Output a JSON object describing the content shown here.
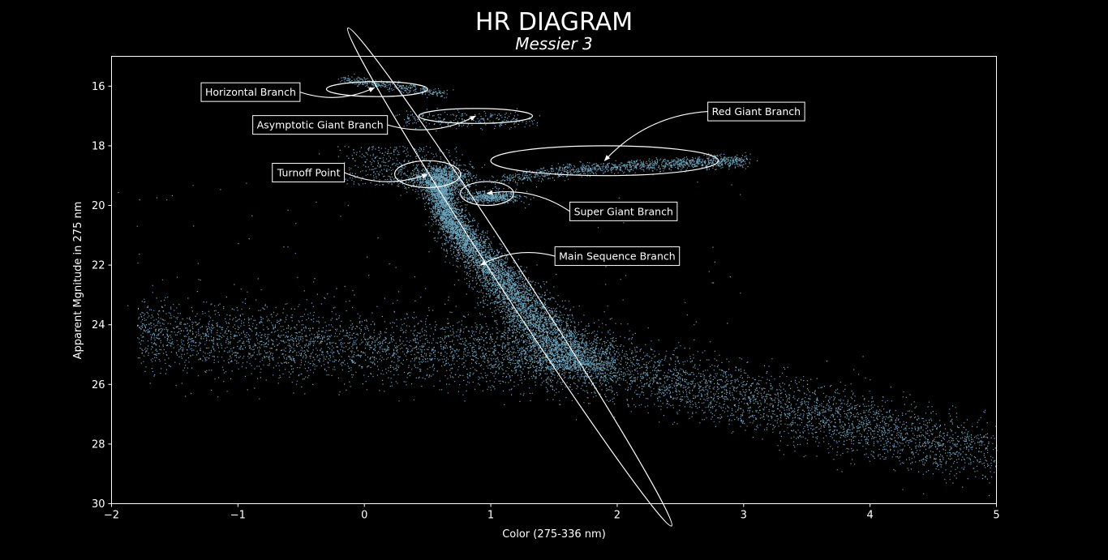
{
  "chart_data": {
    "type": "scatter",
    "title": "HR DIAGRAM",
    "subtitle": "Messier 3",
    "xlabel": "Color (275-336 nm)",
    "ylabel": "Apparent Mgnitude in 275 nm",
    "xlim": [
      -2,
      5
    ],
    "ylim": [
      30,
      15
    ],
    "y_inverted": true,
    "x_ticks": [
      -2,
      -1,
      0,
      1,
      2,
      3,
      4,
      5
    ],
    "x_tick_labels": [
      "−2",
      "−1",
      "0",
      "1",
      "2",
      "3",
      "4",
      "5"
    ],
    "y_ticks": [
      16,
      18,
      20,
      22,
      24,
      26,
      28,
      30
    ],
    "y_tick_labels": [
      "16",
      "18",
      "20",
      "22",
      "24",
      "26",
      "28",
      "30"
    ],
    "grid": false,
    "colors": {
      "background": "#000000",
      "points": "#87ceeb",
      "annotation": "#ffffff"
    },
    "series": [
      {
        "color": "#87ceeb",
        "regions": [
          {
            "component": "horizontal_branch",
            "x_range": [
              -0.2,
              0.7
            ],
            "y_range": [
              15.6,
              16.5
            ],
            "approx_points": 350
          },
          {
            "component": "asymptotic_giant_branch",
            "x_range": [
              0.2,
              1.4
            ],
            "y_range": [
              16.4,
              17.6
            ],
            "approx_points": 250
          },
          {
            "component": "red_giant_branch",
            "x_range": [
              1.0,
              3.1
            ],
            "y_range": [
              17.8,
              19.6
            ],
            "approx_points": 1200
          },
          {
            "component": "turnoff_point",
            "center": [
              0.6,
              19.1
            ],
            "approx_points": 1200
          },
          {
            "component": "super_giant_branch",
            "center": [
              1.0,
              19.7
            ],
            "approx_points": 500
          },
          {
            "component": "main_sequence",
            "x_range": [
              0.5,
              1.9
            ],
            "y_range": [
              19.2,
              25.6
            ],
            "approx_points": 6000
          },
          {
            "component": "faint_tail",
            "x_range": [
              1.5,
              5.0
            ],
            "y_range": [
              25.0,
              28.8
            ],
            "approx_points": 3500
          },
          {
            "component": "scattered_field",
            "x_range": [
              -2.0,
              2.0
            ],
            "y_range": [
              23.5,
              26.5
            ],
            "approx_points": 3500
          }
        ]
      }
    ],
    "annotations": [
      {
        "text": "Horizontal Branch",
        "label_at": [
          -0.9,
          16.2
        ],
        "arrow_to": [
          0.08,
          16.05
        ],
        "ellipse": {
          "center": [
            0.1,
            16.1
          ],
          "rx": 0.4,
          "ry": 0.25
        }
      },
      {
        "text": "Asymptotic Giant Branch",
        "label_at": [
          -0.35,
          17.3
        ],
        "arrow_to": [
          0.88,
          17.0
        ],
        "ellipse": {
          "center": [
            0.88,
            17.0
          ],
          "rx": 0.45,
          "ry": 0.25
        }
      },
      {
        "text": "Red Giant Branch",
        "label_at": [
          3.1,
          16.85
        ],
        "arrow_to": [
          1.9,
          18.5
        ],
        "ellipse": {
          "center": [
            1.9,
            18.5
          ],
          "rx": 0.9,
          "ry": 0.5
        }
      },
      {
        "text": "Turnoff Point",
        "label_at": [
          -0.44,
          18.9
        ],
        "arrow_to": [
          0.5,
          18.95
        ],
        "ellipse": {
          "center": [
            0.5,
            18.95
          ],
          "rx": 0.26,
          "ry": 0.45
        }
      },
      {
        "text": "Super Giant Branch",
        "label_at": [
          2.05,
          20.2
        ],
        "arrow_to": [
          0.97,
          19.6
        ],
        "ellipse": {
          "center": [
            0.97,
            19.6
          ],
          "rx": 0.21,
          "ry": 0.4
        }
      },
      {
        "text": "Main Sequence Branch",
        "label_at": [
          2.0,
          21.7
        ],
        "arrow_to": [
          0.92,
          22.0
        ],
        "ellipse": {
          "center": [
            1.15,
            22.4
          ],
          "rx": 2.35,
          "ry": 0.43,
          "angle_deg": 57
        }
      }
    ]
  }
}
